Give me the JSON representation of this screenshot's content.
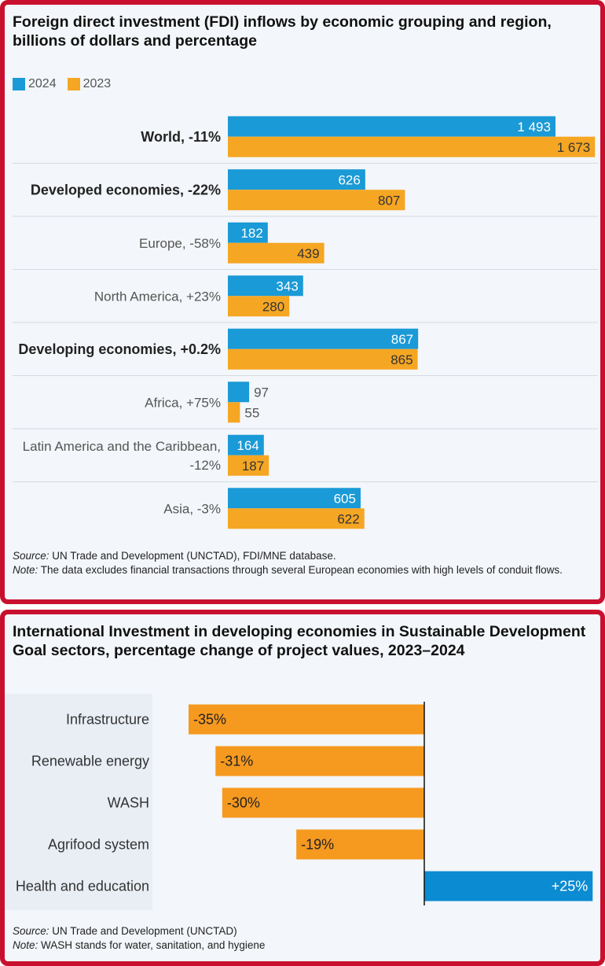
{
  "panel1": {
    "title": "Foreign direct investment (FDI) inflows by economic grouping and region, billions of dollars and percentage",
    "source_label": "Source:",
    "source_text": " UN Trade and Development (UNCTAD), FDI/MNE database.",
    "note_label": "Note:",
    "note_text": " The data excludes financial transactions through several European economies with high levels of conduit flows."
  },
  "panel2": {
    "title": "International Investment in developing economies in Sustainable Development Goal sectors, percentage change of project values, 2023–2024",
    "source_label": "Source:",
    "source_text": " UN Trade and Development (UNCTAD)",
    "note_label": "Note:",
    "note_text": " WASH stands for water, sanitation, and hygiene"
  },
  "chart_data": [
    {
      "type": "bar",
      "orientation": "horizontal",
      "title": "Foreign direct investment (FDI) inflows by economic grouping and region, billions of dollars and percentage",
      "categories": [
        "World, -11%",
        "Developed economies, -22%",
        "Europe, -58%",
        "North America, +23%",
        "Developing economies, +0.2%",
        "Africa, +75%",
        "Latin America and the Caribbean, -12%",
        "Asia, -3%"
      ],
      "bold_categories": [
        true,
        true,
        false,
        false,
        true,
        false,
        false,
        false
      ],
      "series": [
        {
          "name": "2024",
          "color": "#1a9ad6",
          "values": [
            1493,
            626,
            182,
            343,
            867,
            97,
            164,
            605
          ],
          "labels": [
            "1 493",
            "626",
            "182",
            "343",
            "867",
            "97",
            "164",
            "605"
          ]
        },
        {
          "name": "2023",
          "color": "#f5a623",
          "values": [
            1673,
            807,
            439,
            280,
            865,
            55,
            187,
            622
          ],
          "labels": [
            "1 673",
            "807",
            "439",
            "280",
            "865",
            "55",
            "187",
            "622"
          ]
        }
      ],
      "xlim": [
        0,
        1800
      ],
      "legend": "top-left"
    },
    {
      "type": "bar",
      "orientation": "horizontal",
      "title": "International Investment in developing economies in Sustainable Development Goal sectors, percentage change of project values, 2023–2024",
      "categories": [
        "Infrastructure",
        "Renewable energy",
        "WASH",
        "Agrifood system",
        "Health and education"
      ],
      "values": [
        -35,
        -31,
        -30,
        -19,
        25
      ],
      "labels": [
        "-35%",
        "-31%",
        "-30%",
        "-19%",
        "+25%"
      ],
      "colors": {
        "negative": "#f5991f",
        "positive": "#0b8bd1"
      },
      "xlim": [
        -35,
        25
      ]
    }
  ]
}
